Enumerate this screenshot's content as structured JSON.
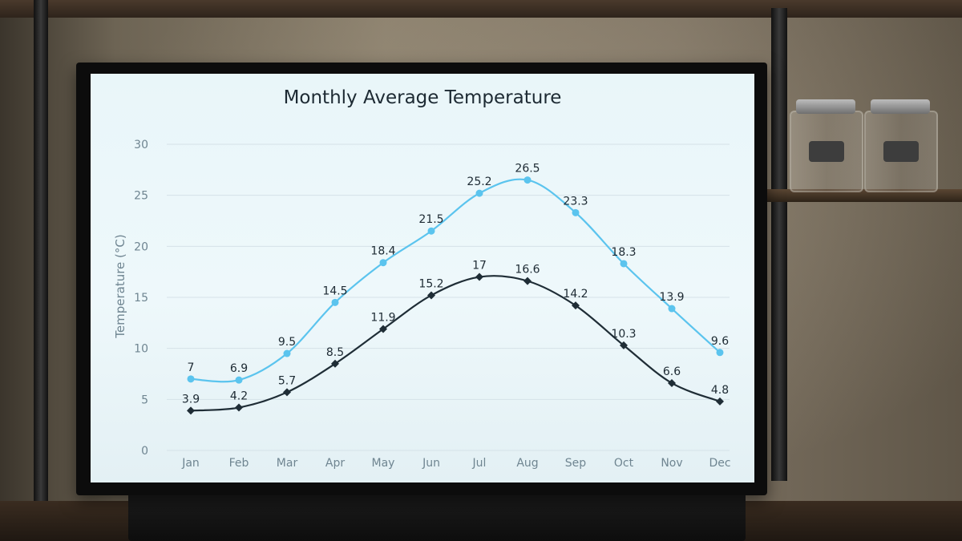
{
  "chart_data": {
    "type": "line",
    "title": "Monthly Average Temperature",
    "xlabel": "",
    "ylabel": "Temperature (°C)",
    "categories": [
      "Jan",
      "Feb",
      "Mar",
      "Apr",
      "May",
      "Jun",
      "Jul",
      "Aug",
      "Sep",
      "Oct",
      "Nov",
      "Dec"
    ],
    "ylim": [
      0,
      30
    ],
    "yticks": [
      0,
      5,
      10,
      15,
      20,
      25,
      30
    ],
    "grid": true,
    "series": [
      {
        "values": [
          7,
          6.9,
          9.5,
          14.5,
          18.4,
          21.5,
          25.2,
          26.5,
          23.3,
          18.3,
          13.9,
          9.6
        ],
        "color": "#5bc4ee",
        "marker": "circle"
      },
      {
        "values": [
          3.9,
          4.2,
          5.7,
          8.5,
          11.9,
          15.2,
          17,
          16.6,
          14.2,
          10.3,
          6.6,
          4.8
        ],
        "color": "#1f2d36",
        "marker": "diamond"
      }
    ],
    "colors": {
      "text": "#1d2a33",
      "axis_text": "#6f8591",
      "grid": "#d5e2e8"
    }
  }
}
